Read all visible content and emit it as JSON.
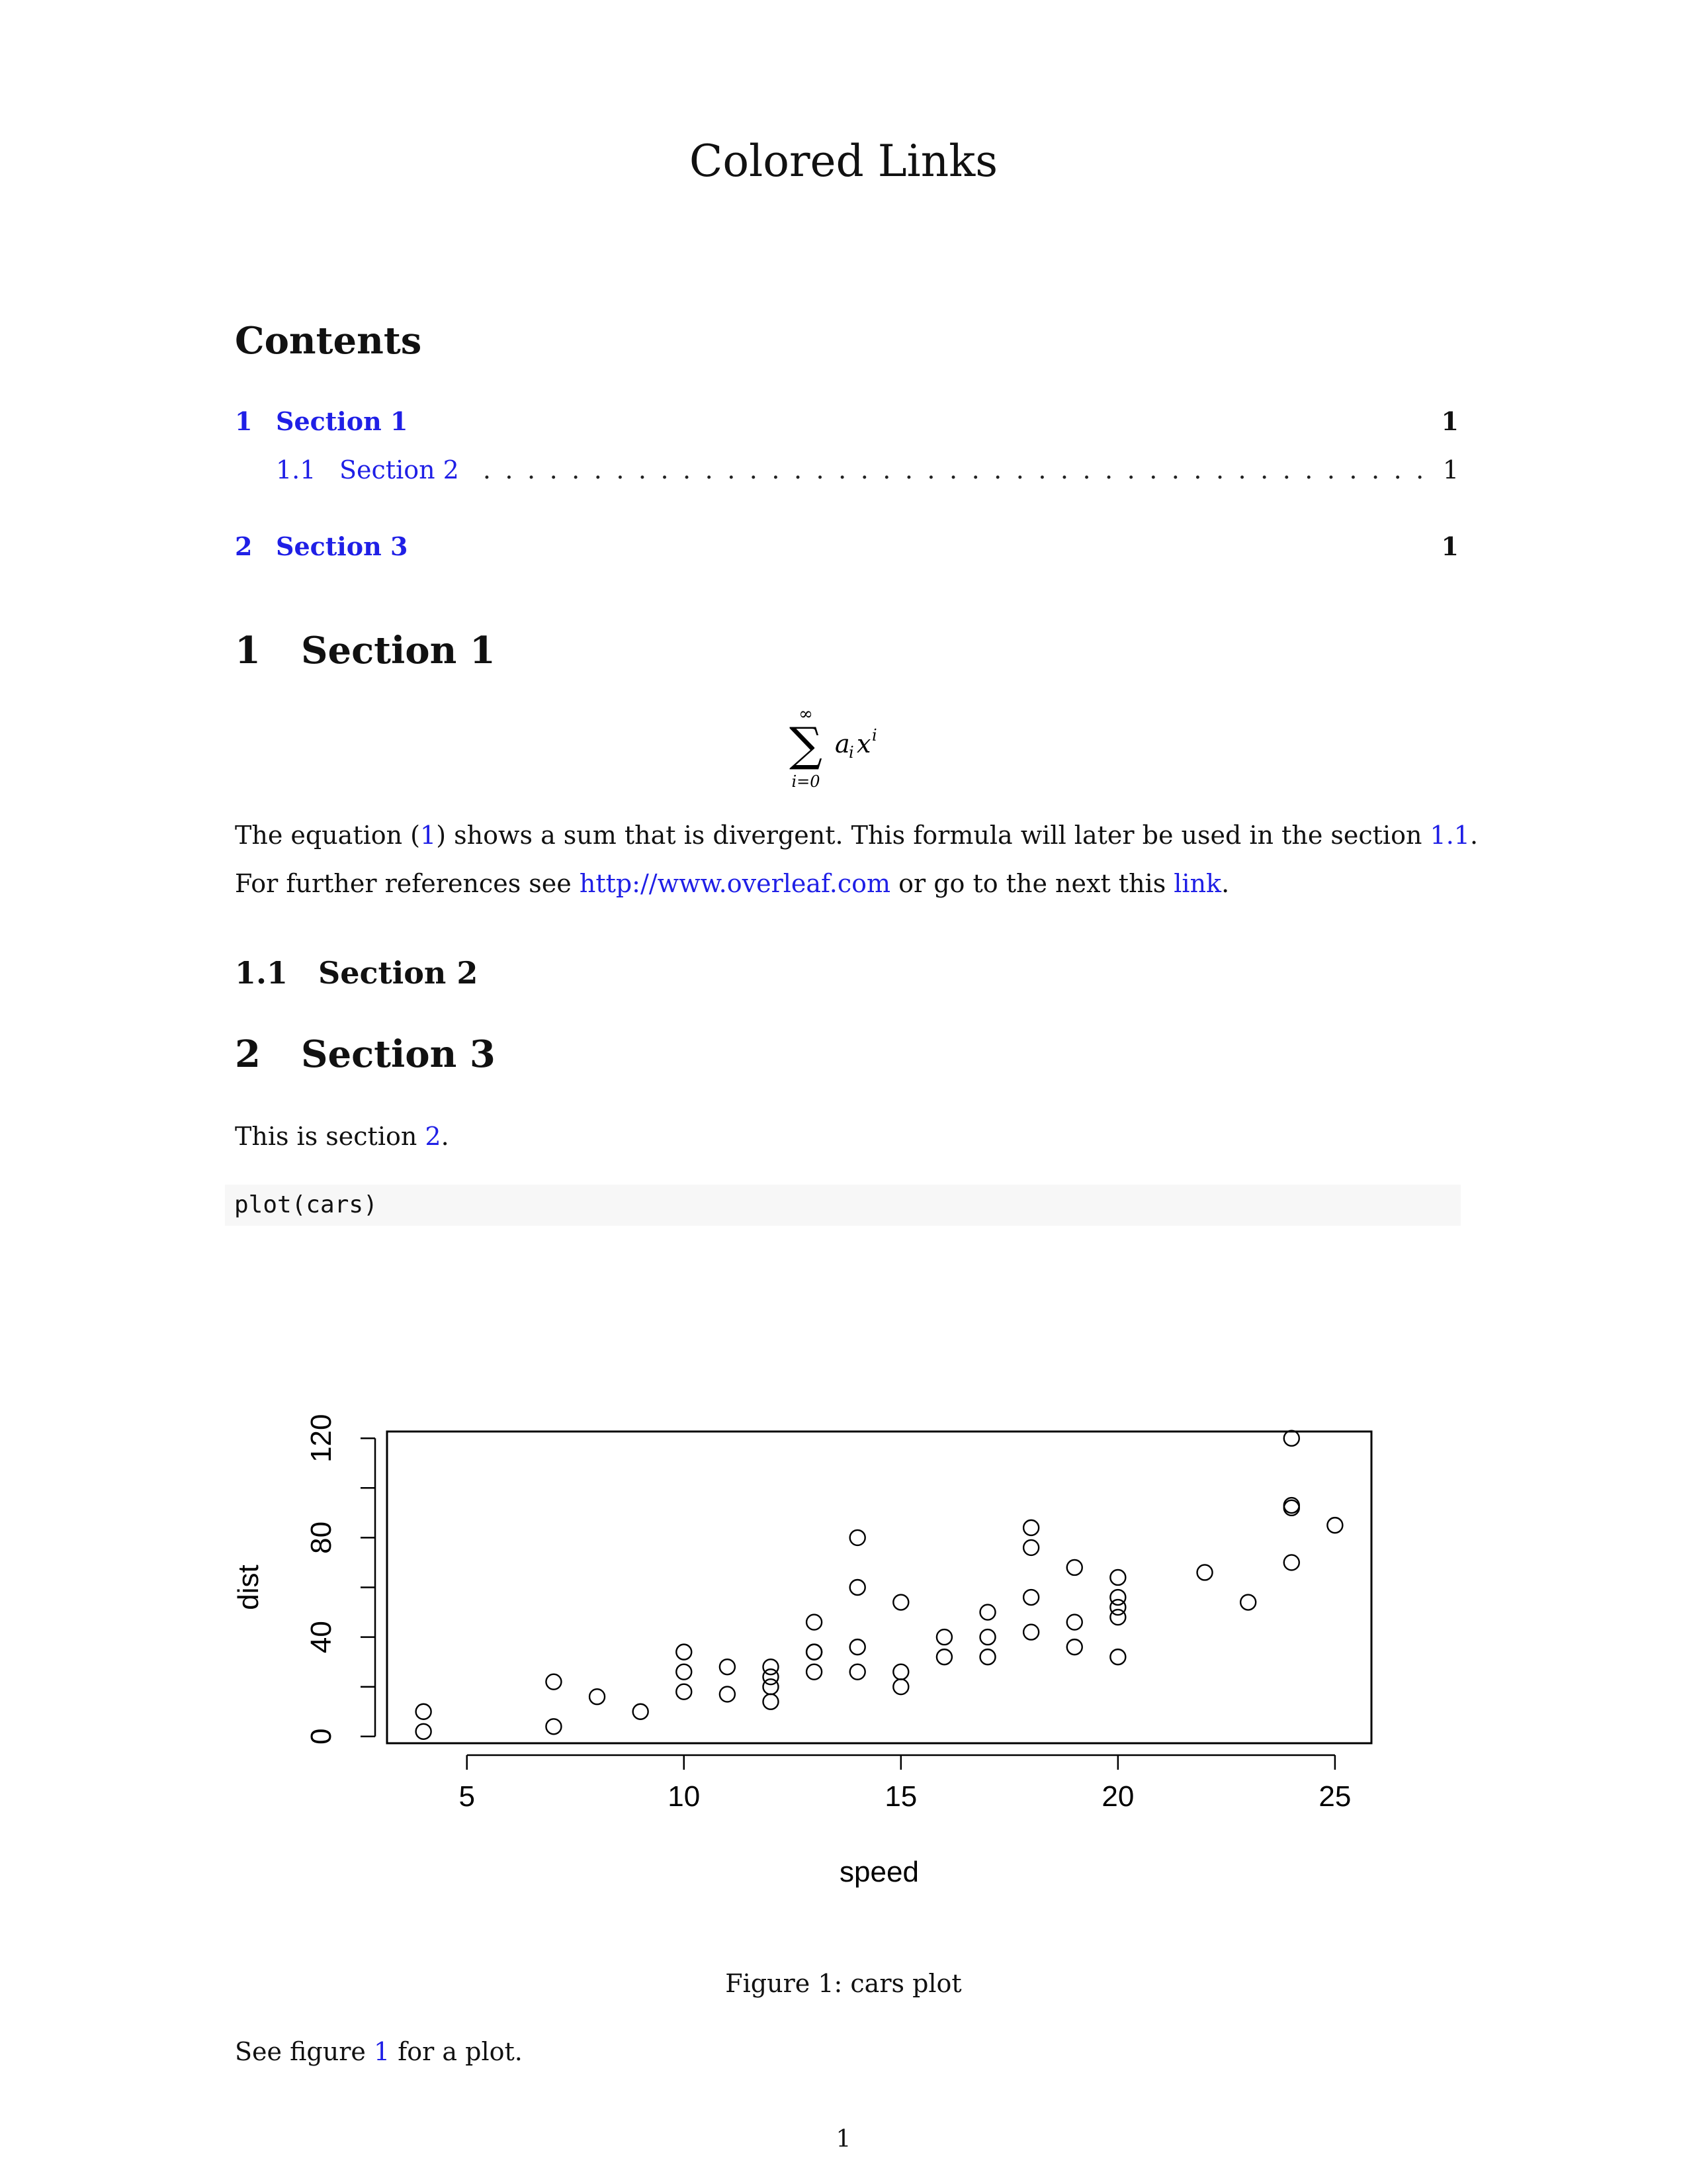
{
  "document": {
    "title": "Colored Links",
    "page_number": "1"
  },
  "toc": {
    "heading": "Contents",
    "entries": [
      {
        "num": "1",
        "label": "Section 1",
        "page": "1"
      },
      {
        "num": "1.1",
        "label": "Section 2",
        "page": "1"
      },
      {
        "num": "2",
        "label": "Section 3",
        "page": "1"
      }
    ]
  },
  "section1": {
    "num": "1",
    "title": "Section 1",
    "equation": {
      "sum_upper": "∞",
      "sum_lower": "i=0",
      "sum_symbol": "∑",
      "term": "a",
      "term_sub": "i",
      "var": "x",
      "var_sup": "i"
    },
    "para1": {
      "t1": "The equation (",
      "eq_ref": "1",
      "t2": ") shows a sum that is divergent. This formula will later be used in the section ",
      "sec_ref": "1.1",
      "t3": "."
    },
    "para2": {
      "t1": "For further references see ",
      "url": "http://www.overleaf.com",
      "t2": " or go to the next this ",
      "link": "link",
      "t3": "."
    }
  },
  "section2": {
    "num": "1.1",
    "title": "Section 2"
  },
  "section3": {
    "num": "2",
    "title": "Section 3",
    "para": {
      "t1": "This is section ",
      "ref": "2",
      "t2": "."
    },
    "code": "plot(cars)"
  },
  "figure": {
    "caption": "Figure 1: cars plot",
    "after": {
      "t1": "See figure ",
      "ref": "1",
      "t2": " for a plot."
    }
  },
  "chart_data": {
    "type": "scatter",
    "title": "",
    "xlabel": "speed",
    "ylabel": "dist",
    "xlim": [
      3.16,
      25.84
    ],
    "ylim": [
      -2.72,
      122.72
    ],
    "xticks": [
      5,
      10,
      15,
      20,
      25
    ],
    "yticks": [
      0,
      40,
      80,
      120
    ],
    "yticks_minor": [
      20,
      60,
      100
    ],
    "grid": false,
    "marker": "open-circle",
    "points": [
      [
        4,
        2
      ],
      [
        4,
        10
      ],
      [
        7,
        4
      ],
      [
        7,
        22
      ],
      [
        8,
        16
      ],
      [
        9,
        10
      ],
      [
        10,
        18
      ],
      [
        10,
        26
      ],
      [
        10,
        34
      ],
      [
        11,
        17
      ],
      [
        11,
        28
      ],
      [
        12,
        14
      ],
      [
        12,
        20
      ],
      [
        12,
        24
      ],
      [
        12,
        28
      ],
      [
        13,
        26
      ],
      [
        13,
        34
      ],
      [
        13,
        34
      ],
      [
        13,
        46
      ],
      [
        14,
        26
      ],
      [
        14,
        36
      ],
      [
        14,
        60
      ],
      [
        14,
        80
      ],
      [
        15,
        20
      ],
      [
        15,
        26
      ],
      [
        15,
        54
      ],
      [
        16,
        32
      ],
      [
        16,
        40
      ],
      [
        17,
        32
      ],
      [
        17,
        40
      ],
      [
        17,
        50
      ],
      [
        18,
        42
      ],
      [
        18,
        56
      ],
      [
        18,
        76
      ],
      [
        18,
        84
      ],
      [
        19,
        36
      ],
      [
        19,
        46
      ],
      [
        19,
        68
      ],
      [
        20,
        32
      ],
      [
        20,
        48
      ],
      [
        20,
        52
      ],
      [
        20,
        56
      ],
      [
        20,
        64
      ],
      [
        22,
        66
      ],
      [
        23,
        54
      ],
      [
        24,
        70
      ],
      [
        24,
        92
      ],
      [
        24,
        93
      ],
      [
        24,
        120
      ],
      [
        25,
        85
      ]
    ]
  }
}
